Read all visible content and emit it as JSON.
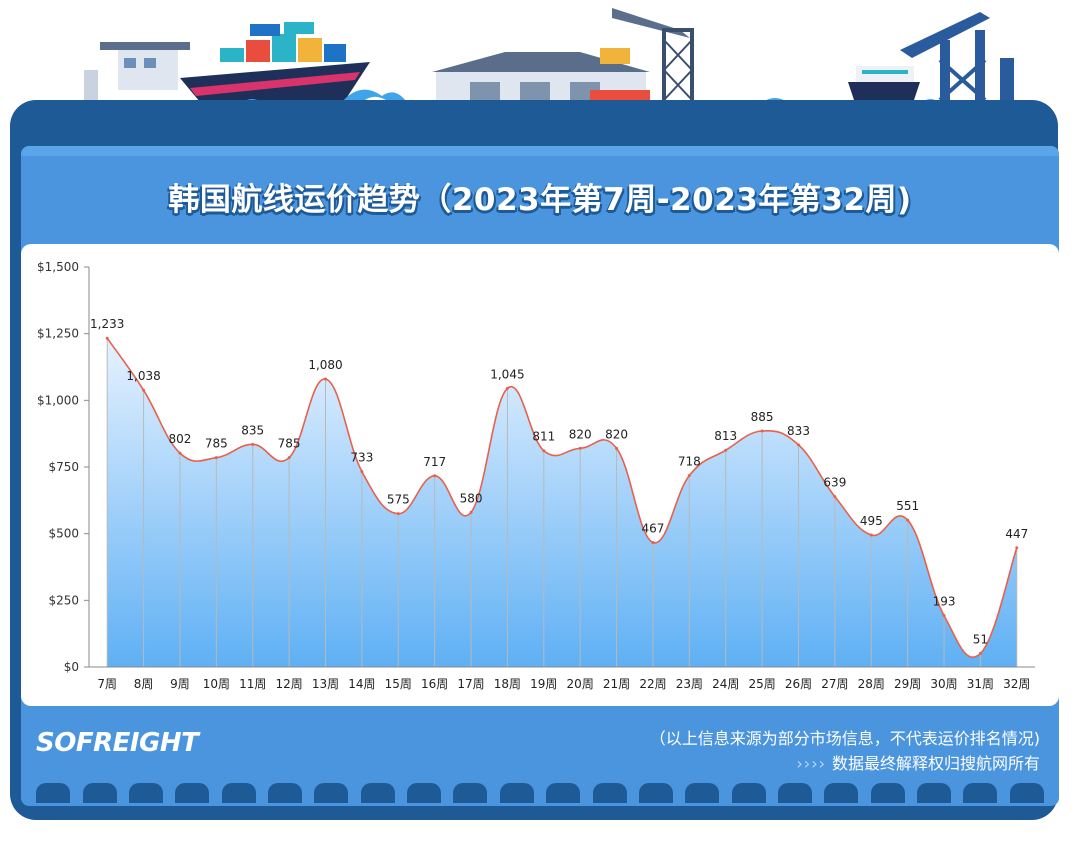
{
  "title": "韩国航线运价趋势（2023年第7周-2023年第32周)",
  "footer": {
    "logo_text": "SOFREIGHT",
    "note": "（以上信息来源为部分市场信息，不代表运价排名情况)",
    "copyright_arrows": "››››",
    "copyright": "数据最终解释权归搜航网所有"
  },
  "colors": {
    "frame": "#1e5a96",
    "panel": "#4a95de",
    "line": "#e8604c",
    "area_top": "#e6f2ff",
    "area_bottom": "#5fb0f4",
    "gridline": "#b9b9b9"
  },
  "chart_data": {
    "type": "area",
    "title": "韩国航线运价趋势（2023年第7周-2023年第32周)",
    "xlabel": "",
    "ylabel": "",
    "ylim": [
      0,
      1500
    ],
    "yticks": [
      0,
      250,
      500,
      750,
      1000,
      1250,
      1500
    ],
    "ytick_labels": [
      "$0",
      "$250",
      "$500",
      "$750",
      "$1,000",
      "$1,250",
      "$1,500"
    ],
    "categories": [
      "7周",
      "8周",
      "9周",
      "10周",
      "11周",
      "12周",
      "13周",
      "14周",
      "15周",
      "16周",
      "17周",
      "18周",
      "19周",
      "20周",
      "21周",
      "22周",
      "23周",
      "24周",
      "25周",
      "26周",
      "27周",
      "28周",
      "29周",
      "30周",
      "31周",
      "32周"
    ],
    "values": [
      1233,
      1038,
      802,
      785,
      835,
      785,
      1080,
      733,
      575,
      717,
      580,
      1045,
      811,
      820,
      820,
      467,
      718,
      813,
      885,
      833,
      639,
      495,
      551,
      193,
      51,
      447
    ],
    "value_labels": [
      "1,233",
      "1,038",
      "802",
      "785",
      "835",
      "785",
      "1,080",
      "733",
      "575",
      "717",
      "580",
      "1,045",
      "811",
      "820",
      "820",
      "467",
      "718",
      "813",
      "885",
      "833",
      "639",
      "495",
      "551",
      "193",
      "51",
      "447"
    ],
    "grid": "vertical",
    "smooth": true
  }
}
